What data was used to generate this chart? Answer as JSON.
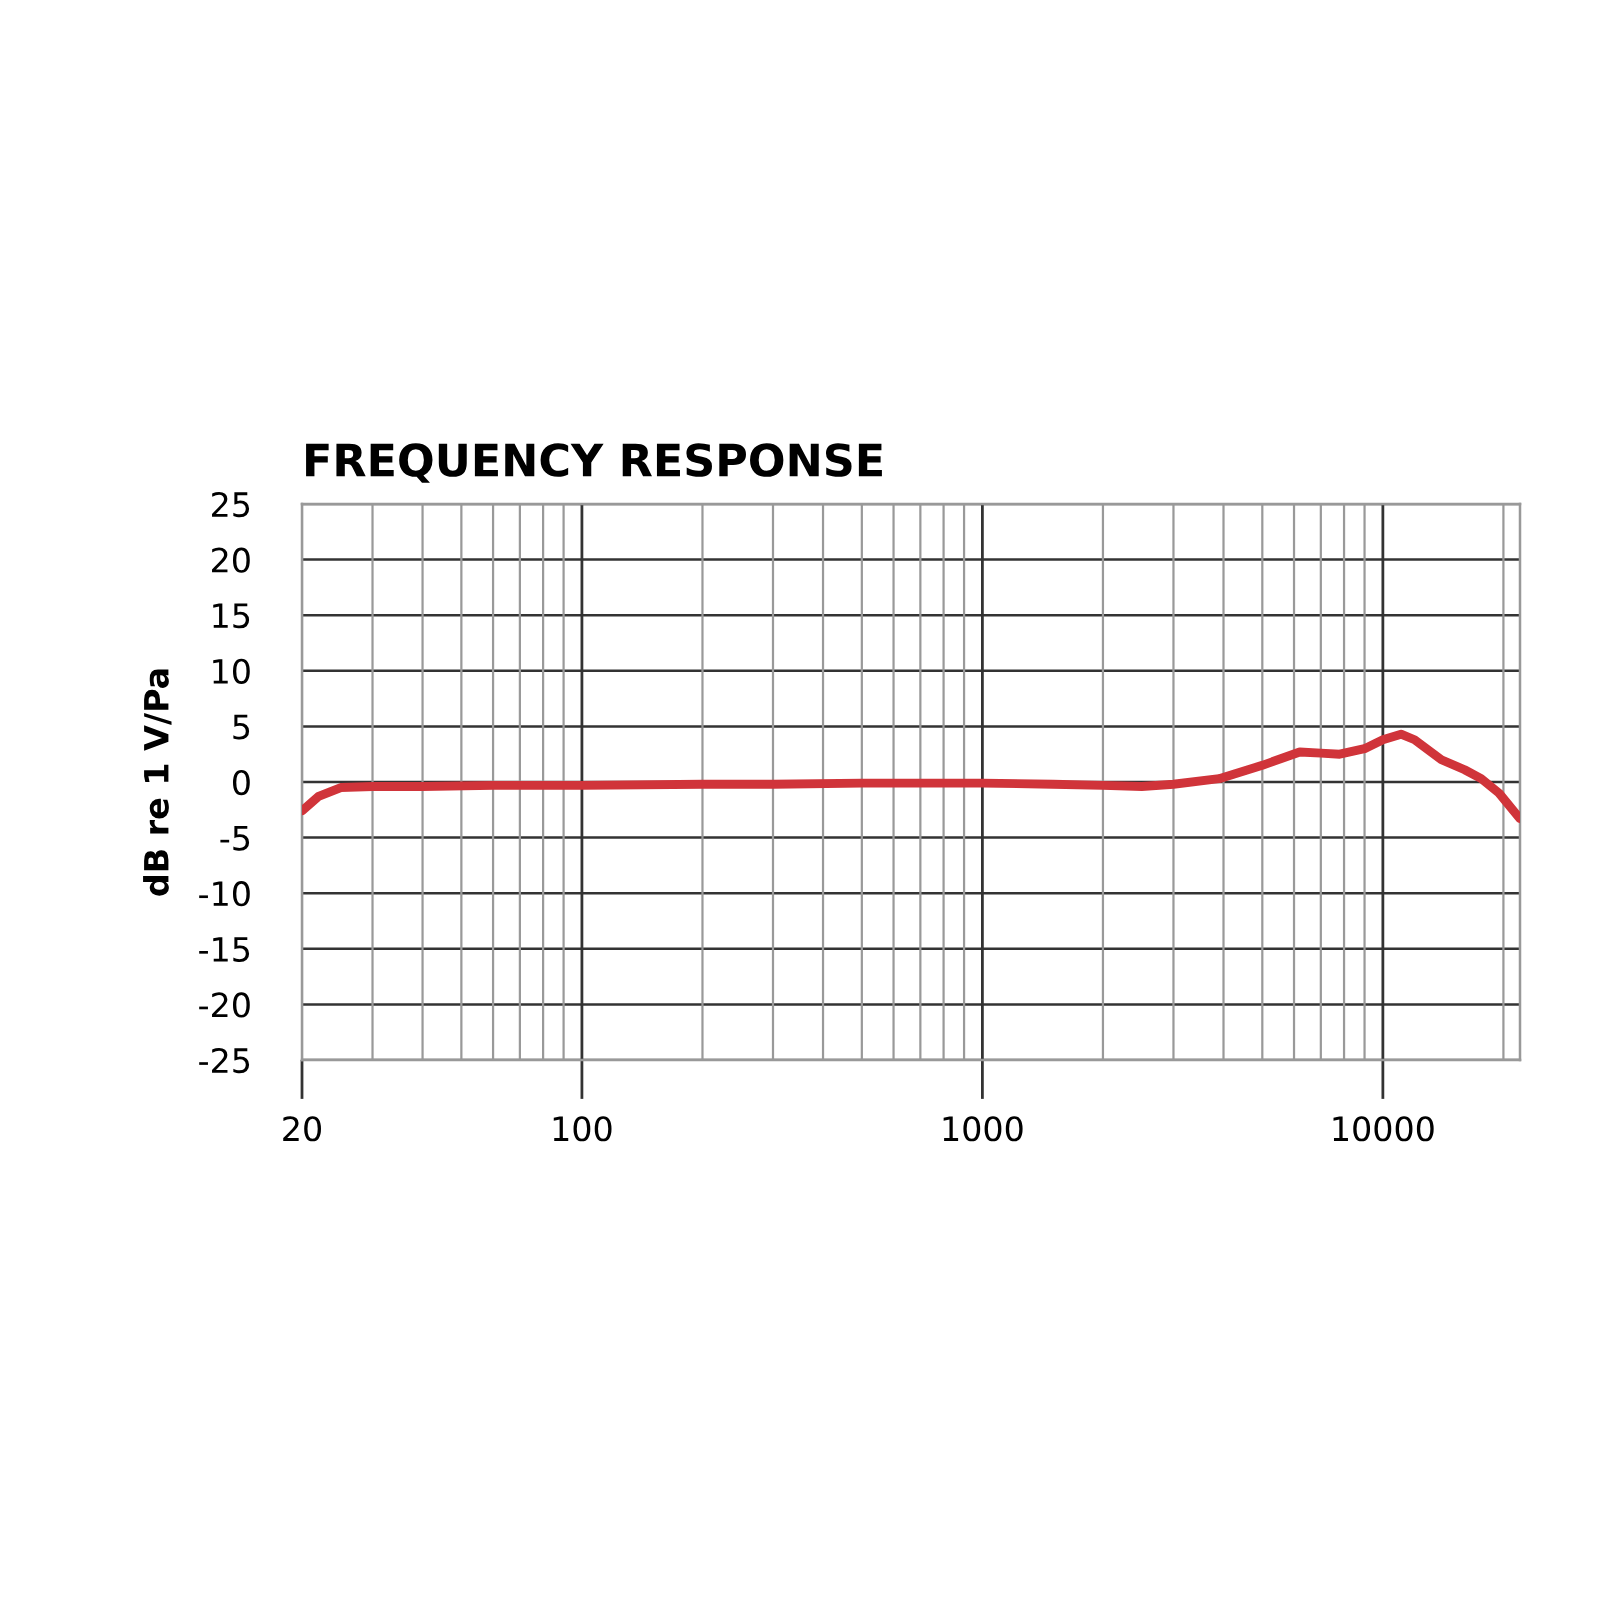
{
  "chart_data": {
    "type": "line",
    "title": "FREQUENCY RESPONSE",
    "ylabel": "dB re 1 V/Pa",
    "series": [
      {
        "color": "#d0343a",
        "x": [
          20,
          22,
          25,
          30,
          40,
          60,
          100,
          200,
          300,
          500,
          1000,
          1500,
          2000,
          2500,
          3000,
          3900,
          5000,
          6200,
          7000,
          7800,
          9000,
          10000,
          11100,
          12000,
          14000,
          16000,
          17600,
          19500,
          22000
        ],
        "values": [
          -2.6,
          -1.3,
          -0.5,
          -0.4,
          -0.4,
          -0.3,
          -0.3,
          -0.2,
          -0.2,
          -0.1,
          -0.1,
          -0.2,
          -0.3,
          -0.4,
          -0.2,
          0.3,
          1.5,
          2.7,
          2.6,
          2.5,
          3.0,
          3.8,
          4.3,
          3.8,
          2.0,
          1.1,
          0.3,
          -1.0,
          -3.3
        ]
      }
    ],
    "log": "x",
    "xlim": [
      20,
      22000
    ],
    "xticks": [
      20,
      100,
      1000,
      10000
    ],
    "ylim": [
      -25,
      25
    ],
    "yticks": [
      -25,
      -20,
      -15,
      -10,
      -5,
      0,
      5,
      10,
      15,
      20,
      25
    ],
    "grid": true,
    "line_style": "solid",
    "marker": "none"
  }
}
